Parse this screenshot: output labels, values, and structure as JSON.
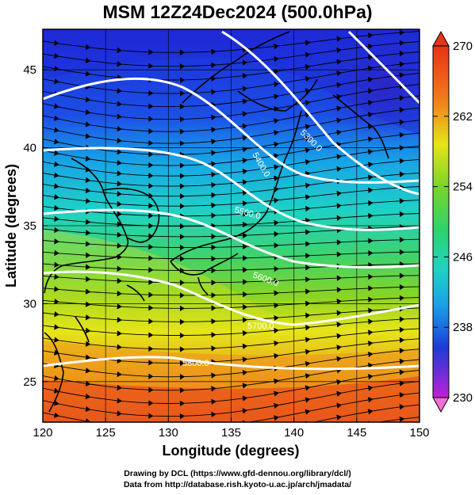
{
  "title": "MSM 12Z24Dec2024 (500.0hPa)",
  "credits": {
    "line1": "Drawing by DCL (https://www.gfd-dennou.org/library/dcl/)",
    "line2": "Data from http://database.rish.kyoto-u.ac.jp/arch/jmadata/"
  },
  "axes": {
    "xlabel": "Longitude (degrees)",
    "ylabel": "Latitude  (degrees)",
    "x_ticks": [
      "120",
      "125",
      "130",
      "135",
      "140",
      "145",
      "150"
    ],
    "y_ticks": [
      "25",
      "30",
      "35",
      "40",
      "45"
    ]
  },
  "colorbar": {
    "labels": [
      "270",
      "262",
      "254",
      "246",
      "238",
      "230"
    ],
    "min": 230,
    "max": 270
  },
  "contours": [
    {
      "label": "5300.0"
    },
    {
      "label": "5400.0"
    },
    {
      "label": "5500.0"
    },
    {
      "label": "5600.0"
    },
    {
      "label": "5700.0"
    },
    {
      "label": "5800.0"
    }
  ],
  "chart_data": {
    "type": "heatmap",
    "title": "MSM 12Z24Dec2024 (500.0hPa)",
    "xlabel": "Longitude (degrees)",
    "ylabel": "Latitude  (degrees)",
    "xlim": [
      120,
      150
    ],
    "ylim": [
      22.4,
      47.6
    ],
    "x_ticks": [
      120,
      125,
      130,
      135,
      140,
      145,
      150
    ],
    "y_ticks": [
      25,
      30,
      35,
      40,
      45
    ],
    "color_variable_range": [
      230,
      270
    ],
    "colorbar_ticks": [
      230,
      238,
      246,
      254,
      262,
      270
    ],
    "grid": true,
    "contour_levels": [
      5300,
      5400,
      5500,
      5600,
      5700,
      5800
    ],
    "overlays": [
      "filled color field",
      "streamlines",
      "coastlines",
      "height contours"
    ]
  },
  "colors": {
    "contour": "#ffffff",
    "coastline": "#000000",
    "streamline": "#000000",
    "grid": "#000000"
  }
}
